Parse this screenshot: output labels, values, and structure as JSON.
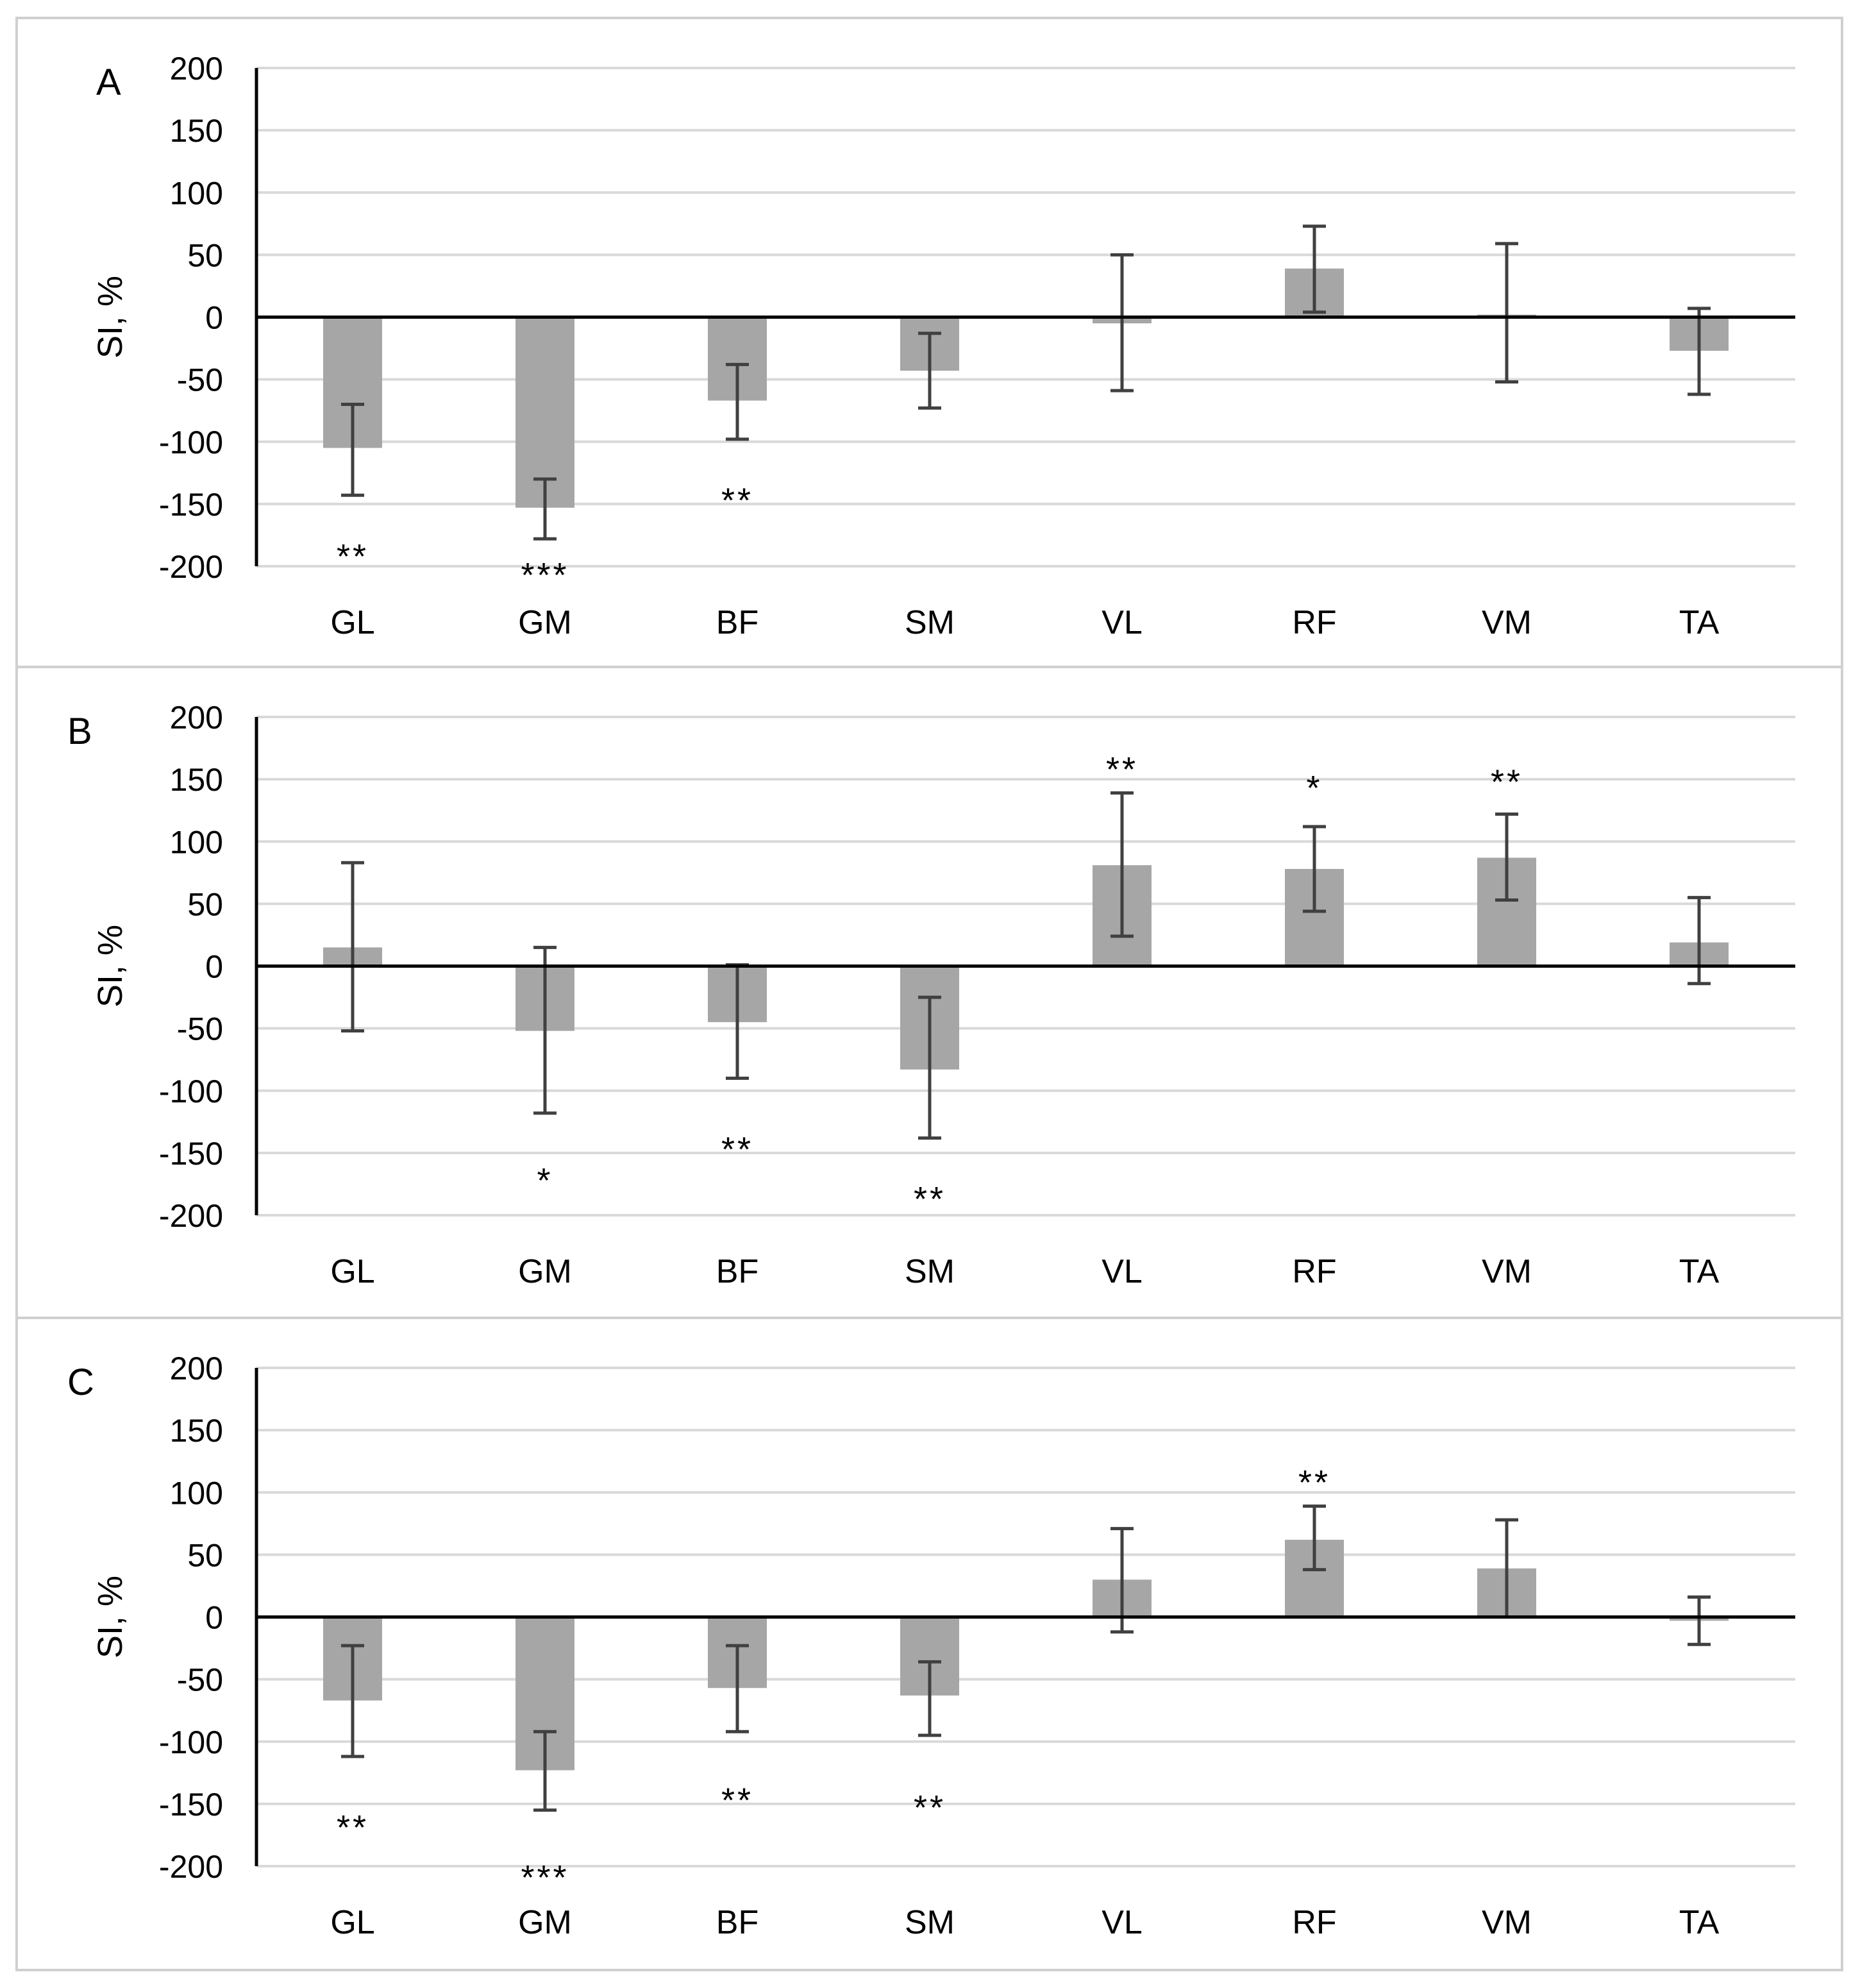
{
  "colors": {
    "bar": "#a6a6a6",
    "error_bar": "#404040",
    "gridline": "#d9d9d9",
    "axis": "#000000",
    "panel_border": "#d0d0d0"
  },
  "chart_data": [
    {
      "panel_label": "A",
      "type": "bar",
      "title": "",
      "xlabel": "",
      "ylabel": "SI, %",
      "ylim": [
        -200,
        200
      ],
      "y_ticks": [
        "200",
        "150",
        "100",
        "50",
        "0",
        "-50",
        "-100",
        "-150",
        "-200"
      ],
      "grid": true,
      "categories": [
        "GL",
        "GM",
        "BF",
        "SM",
        "VL",
        "RF",
        "VM",
        "TA"
      ],
      "values": [
        -105,
        -153,
        -67,
        -43,
        -5,
        39,
        2,
        -27
      ],
      "error_low": [
        -143,
        -178,
        -98,
        -73,
        -59,
        4,
        -52,
        -62
      ],
      "error_high": [
        -70,
        -130,
        -38,
        -13,
        50,
        73,
        59,
        7
      ],
      "significance": [
        "**",
        "***",
        "**",
        "",
        "",
        "",
        "",
        ""
      ],
      "significance_y": [
        -185,
        -200,
        -140,
        null,
        null,
        null,
        null,
        null
      ]
    },
    {
      "panel_label": "B",
      "type": "bar",
      "title": "",
      "xlabel": "",
      "ylabel": "SI, %",
      "ylim": [
        -200,
        200
      ],
      "y_ticks": [
        "200",
        "150",
        "100",
        "50",
        "0",
        "-50",
        "-100",
        "-150",
        "-200"
      ],
      "grid": true,
      "categories": [
        "GL",
        "GM",
        "BF",
        "SM",
        "VL",
        "RF",
        "VM",
        "TA"
      ],
      "values": [
        15,
        -52,
        -45,
        -83,
        81,
        78,
        87,
        19
      ],
      "error_low": [
        -52,
        -118,
        -90,
        -138,
        24,
        44,
        53,
        -14
      ],
      "error_high": [
        83,
        15,
        1,
        -25,
        139,
        112,
        122,
        55
      ],
      "significance": [
        "",
        "*",
        "**",
        "**",
        "**",
        "*",
        "**",
        ""
      ],
      "significance_y": [
        null,
        -165,
        -140,
        -180,
        165,
        150,
        155,
        null
      ]
    },
    {
      "panel_label": "C",
      "type": "bar",
      "title": "",
      "xlabel": "",
      "ylabel": "SI, %",
      "ylim": [
        -200,
        200
      ],
      "y_ticks": [
        "200",
        "150",
        "100",
        "50",
        "0",
        "-50",
        "-100",
        "-150",
        "-200"
      ],
      "grid": true,
      "categories": [
        "GL",
        "GM",
        "BF",
        "SM",
        "VL",
        "RF",
        "VM",
        "TA"
      ],
      "values": [
        -67,
        -123,
        -57,
        -63,
        30,
        62,
        39,
        -3
      ],
      "error_low": [
        -112,
        -155,
        -92,
        -95,
        -12,
        38,
        0,
        -22
      ],
      "error_high": [
        -23,
        -92,
        -23,
        -36,
        71,
        89,
        78,
        16
      ],
      "significance": [
        "**",
        "***",
        "**",
        "**",
        "",
        "**",
        "",
        ""
      ],
      "significance_y": [
        -162,
        -202,
        -140,
        -146,
        null,
        115,
        null,
        null
      ]
    }
  ]
}
